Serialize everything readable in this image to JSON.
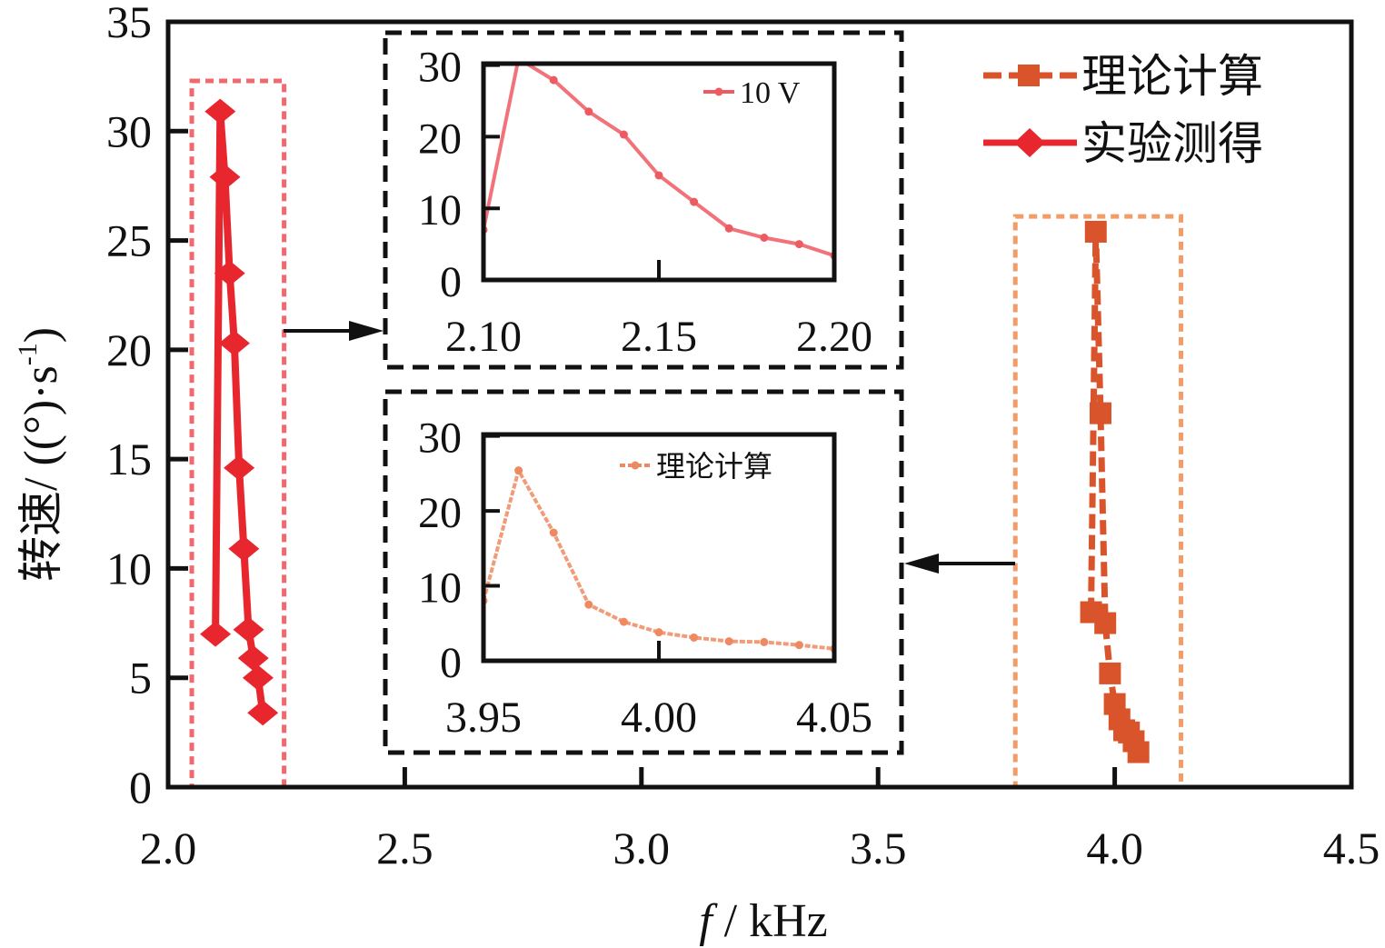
{
  "chart_data": {
    "type": "line",
    "title": "",
    "xlabel": "f / kHz",
    "xlabel_italic_part": "f",
    "xlabel_rest": " / kHz",
    "ylabel": "转速 / ((°)·s⁻¹)",
    "ylabel_cjk": "转速",
    "ylabel_units": " / ((°)·s",
    "ylabel_sup": "-1",
    "ylabel_close": ")",
    "xlim": [
      2.0,
      4.5
    ],
    "ylim": [
      0,
      35
    ],
    "xticks": [
      2.0,
      2.5,
      3.0,
      3.5,
      4.0,
      4.5
    ],
    "xtick_labels": [
      "2.0",
      "2.5",
      "3.0",
      "3.5",
      "4.0",
      "4.5"
    ],
    "yticks": [
      0,
      5,
      10,
      15,
      20,
      25,
      30,
      35
    ],
    "ytick_labels": [
      "0",
      "5",
      "10",
      "15",
      "20",
      "25",
      "30",
      "35"
    ],
    "grid": false,
    "legend_position": "top-right",
    "series": [
      {
        "name": "理论计算",
        "color": "#d9542b",
        "line_style": "dashed",
        "marker": "square",
        "x": [
          3.95,
          3.96,
          3.97,
          3.98,
          3.99,
          4.0,
          4.01,
          4.02,
          4.03,
          4.04,
          4.05
        ],
        "y": [
          8.0,
          25.4,
          17.1,
          7.5,
          5.2,
          3.8,
          3.1,
          2.6,
          2.5,
          2.1,
          1.6
        ]
      },
      {
        "name": "实验测得",
        "color": "#e8262d",
        "line_style": "solid",
        "marker": "diamond",
        "x": [
          2.1,
          2.11,
          2.12,
          2.13,
          2.14,
          2.15,
          2.16,
          2.17,
          2.18,
          2.19,
          2.2
        ],
        "y": [
          7.0,
          30.9,
          27.9,
          23.5,
          20.3,
          14.6,
          10.9,
          7.2,
          5.9,
          5.0,
          3.4
        ]
      }
    ],
    "highlight_boxes": [
      {
        "name": "experimental-region",
        "x_range": [
          2.05,
          2.245
        ],
        "y_range": [
          0,
          32.3
        ],
        "color": "#ee4f55"
      },
      {
        "name": "theoretical-region",
        "x_range": [
          3.79,
          4.14
        ],
        "y_range": [
          0,
          26.1
        ],
        "color": "#f08c4c"
      }
    ],
    "insets": [
      {
        "name": "inset-experimental",
        "series_index": 1,
        "legend_label": "10 V",
        "color": "#ee5a62",
        "xlim": [
          2.1,
          2.2
        ],
        "ylim": [
          0,
          30
        ],
        "xticks": [
          2.1,
          2.15,
          2.2
        ],
        "xtick_labels": [
          "2.10",
          "2.15",
          "2.20"
        ],
        "yticks": [
          0,
          10,
          20,
          30
        ],
        "ytick_labels": [
          "0",
          "10",
          "20",
          "30"
        ]
      },
      {
        "name": "inset-theoretical",
        "series_index": 0,
        "legend_label": "理论计算",
        "color": "#ee8a62",
        "xlim": [
          3.95,
          4.05
        ],
        "ylim": [
          0,
          30
        ],
        "xticks": [
          3.95,
          4.0,
          4.05
        ],
        "xtick_labels": [
          "3.95",
          "4.00",
          "4.05"
        ],
        "yticks": [
          0,
          10,
          20,
          30
        ],
        "ytick_labels": [
          "0",
          "10",
          "20",
          "30"
        ]
      }
    ]
  },
  "legend": {
    "items": [
      {
        "label": "理论计算",
        "color": "#d9542b",
        "marker": "square",
        "line_style": "dashed"
      },
      {
        "label": "实验测得",
        "color": "#e8262d",
        "marker": "diamond",
        "line_style": "solid"
      }
    ]
  }
}
